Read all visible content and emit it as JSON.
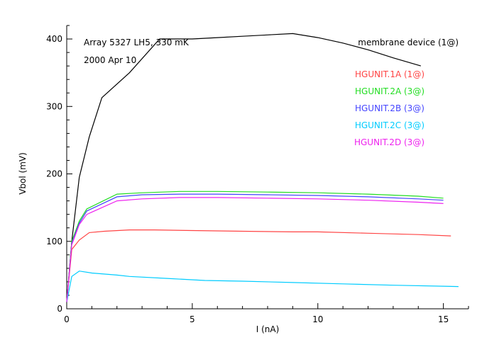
{
  "chart_data": {
    "type": "line",
    "annotations": {
      "line1": "Array 5327 LH5, 330 mK",
      "line2": "2000 Apr 10",
      "top_right": "membrane device (1@)"
    },
    "xlabel": "I (nA)",
    "ylabel": "Vbol (mV)",
    "xlim": [
      0,
      16
    ],
    "ylim": [
      0,
      420
    ],
    "xticks": [
      0,
      5,
      10,
      15
    ],
    "yticks": [
      0,
      100,
      200,
      300,
      400
    ],
    "grid": false,
    "legend_position": "top-right",
    "series": [
      {
        "name": "membrane device (1@)",
        "color": "#000000",
        "show_in_legend": false,
        "x": [
          0,
          0.2,
          0.5,
          0.9,
          1.4,
          2.5,
          3.7,
          5,
          6,
          7,
          8,
          9,
          10,
          11,
          12,
          13,
          14.1
        ],
        "y": [
          10,
          100,
          195,
          255,
          313,
          350,
          400,
          400,
          402,
          404,
          406,
          408,
          402,
          394,
          384,
          372,
          360
        ]
      },
      {
        "name": "HGUNIT.1A (1@)",
        "color": "#ff4444",
        "show_in_legend": true,
        "x": [
          0,
          0.2,
          0.5,
          0.9,
          1.5,
          2.5,
          3.5,
          5,
          7,
          9,
          10,
          12,
          14,
          15.3
        ],
        "y": [
          10,
          88,
          102,
          113,
          115,
          117,
          117,
          116,
          115,
          114,
          114,
          112,
          110,
          108
        ]
      },
      {
        "name": "HGUNIT.2A (3@)",
        "color": "#22dd22",
        "show_in_legend": true,
        "x": [
          0,
          0.2,
          0.5,
          0.8,
          2,
          3,
          4.5,
          6,
          8,
          10,
          12,
          14,
          15
        ],
        "y": [
          10,
          100,
          130,
          148,
          170,
          172,
          174,
          174,
          173,
          172,
          170,
          167,
          164
        ]
      },
      {
        "name": "HGUNIT.2B (3@)",
        "color": "#4444ff",
        "show_in_legend": true,
        "x": [
          0,
          0.2,
          0.5,
          0.8,
          2,
          3,
          4.5,
          6,
          8,
          10,
          12,
          14,
          15
        ],
        "y": [
          10,
          97,
          127,
          145,
          166,
          169,
          170,
          170,
          169,
          168,
          166,
          163,
          161
        ]
      },
      {
        "name": "HGUNIT.2C (3@)",
        "color": "#00ccff",
        "show_in_legend": true,
        "x": [
          0,
          0.2,
          0.5,
          1,
          2,
          2.5,
          4,
          5.5,
          7,
          9,
          11,
          13,
          15.6
        ],
        "y": [
          10,
          48,
          56,
          53,
          50,
          48,
          45,
          42,
          41,
          39,
          37,
          35,
          33
        ]
      },
      {
        "name": "HGUNIT.2D (3@)",
        "color": "#ee22ee",
        "show_in_legend": true,
        "x": [
          0,
          0.2,
          0.5,
          0.8,
          2,
          3,
          4.5,
          6,
          8,
          10,
          12,
          14,
          15
        ],
        "y": [
          10,
          95,
          125,
          140,
          160,
          163,
          165,
          165,
          164,
          163,
          161,
          158,
          156
        ]
      }
    ]
  }
}
